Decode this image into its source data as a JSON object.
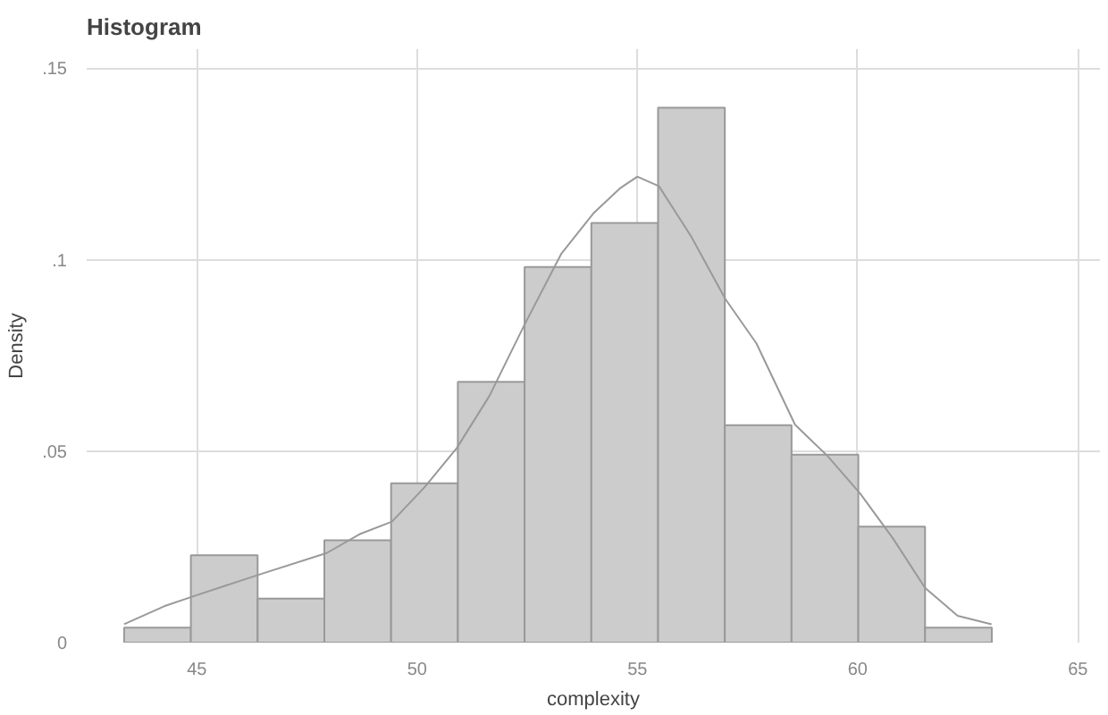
{
  "chart_data": {
    "type": "histogram",
    "title": "Histogram",
    "xlabel": "complexity",
    "ylabel": "Density",
    "bins": [
      43.35,
      44.865,
      46.38,
      47.895,
      49.41,
      50.925,
      52.44,
      53.955,
      55.47,
      56.985,
      58.5,
      60.015,
      61.53,
      63.045
    ],
    "values": [
      0.0039,
      0.0228,
      0.0115,
      0.0267,
      0.0416,
      0.0681,
      0.0981,
      0.1096,
      0.1397,
      0.0568,
      0.0491,
      0.0303,
      0.0039
    ],
    "color": "#cccccc",
    "series": [
      {
        "type": "line",
        "color": "#999999",
        "x": [
          43.35,
          44.26,
          45.0,
          46.48,
          47.95,
          48.69,
          49.43,
          50.17,
          50.9,
          51.64,
          52.45,
          53.27,
          54.0,
          54.6,
          55.0,
          55.49,
          56.22,
          57.0,
          57.7,
          58.58,
          59.32,
          60.06,
          60.79,
          61.53,
          62.27,
          63.04
        ],
        "values": [
          0.0048,
          0.0095,
          0.0124,
          0.018,
          0.0234,
          0.0283,
          0.0316,
          0.0406,
          0.0508,
          0.0644,
          0.0833,
          0.1015,
          0.1121,
          0.1186,
          0.1217,
          0.1192,
          0.1061,
          0.0897,
          0.0782,
          0.0569,
          0.0487,
          0.0389,
          0.0274,
          0.0143,
          0.007,
          0.0048
        ]
      }
    ],
    "xlim": [
      42.5,
      65.5
    ],
    "ylim": [
      0,
      0.155
    ],
    "xticks": [
      45,
      50,
      55,
      60,
      65
    ],
    "yticks": [
      {
        "value": 0,
        "label": "0"
      },
      {
        "value": 0.05,
        "label": ".05"
      },
      {
        "value": 0.1,
        "label": ".1"
      },
      {
        "value": 0.15,
        "label": ".15"
      }
    ],
    "grid": true
  }
}
